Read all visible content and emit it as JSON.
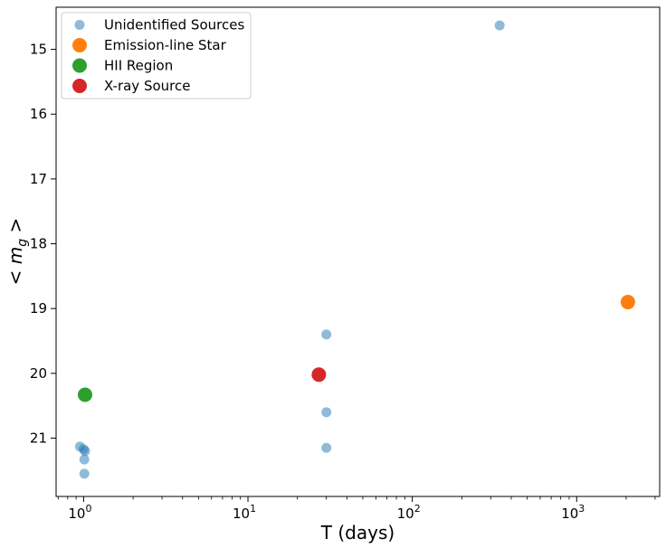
{
  "chart_data": {
    "type": "scatter",
    "xlabel": "T (days)",
    "ylabel_parts": [
      "< ",
      "m",
      "g",
      " >"
    ],
    "x_scale": "log",
    "xlim": [
      0.68,
      3200
    ],
    "ylim": [
      21.9,
      14.35
    ],
    "y_inverted": true,
    "x_ticks": [
      {
        "value": 1,
        "base": "10",
        "exp": "0"
      },
      {
        "value": 10,
        "base": "10",
        "exp": "1"
      },
      {
        "value": 100,
        "base": "10",
        "exp": "2"
      },
      {
        "value": 1000,
        "base": "10",
        "exp": "3"
      }
    ],
    "y_ticks": [
      "15",
      "16",
      "17",
      "18",
      "19",
      "20",
      "21"
    ],
    "grid": false,
    "legend_position": "top-left",
    "series": [
      {
        "name": "Unidentified Sources",
        "color": "#1f77b4",
        "opacity": 0.5,
        "size": "small",
        "points": [
          {
            "x": 0.95,
            "y": 21.13
          },
          {
            "x": 1.0,
            "y": 21.17
          },
          {
            "x": 1.02,
            "y": 21.2
          },
          {
            "x": 1.01,
            "y": 21.33
          },
          {
            "x": 1.01,
            "y": 21.55
          },
          {
            "x": 30,
            "y": 19.4
          },
          {
            "x": 30,
            "y": 20.6
          },
          {
            "x": 30,
            "y": 21.15
          },
          {
            "x": 340,
            "y": 14.63
          }
        ]
      },
      {
        "name": "Emission-line Star",
        "color": "#ff7f0e",
        "opacity": 1,
        "size": "large",
        "points": [
          {
            "x": 2050,
            "y": 18.9
          }
        ]
      },
      {
        "name": "HII Region",
        "color": "#2ca02c",
        "opacity": 1,
        "size": "large",
        "points": [
          {
            "x": 1.02,
            "y": 20.33
          }
        ]
      },
      {
        "name": "X-ray Source",
        "color": "#d62728",
        "opacity": 1,
        "size": "large",
        "points": [
          {
            "x": 27,
            "y": 20.02
          }
        ]
      }
    ]
  }
}
